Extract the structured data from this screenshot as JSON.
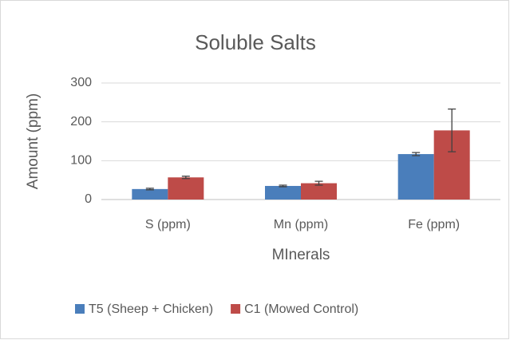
{
  "chart_data": {
    "type": "bar",
    "title": "Soluble Salts",
    "x_label": "MInerals",
    "y_label": "Amount (ppm)",
    "categories": [
      "S (ppm)",
      "Mn (ppm)",
      "Fe (ppm)"
    ],
    "series": [
      {
        "name": "T5 (Sheep + Chicken)",
        "color": "#4a7ebb",
        "values": [
          27,
          35,
          117
        ],
        "errors": [
          2,
          2,
          4
        ]
      },
      {
        "name": "C1 (Mowed Control)",
        "color": "#be4b48",
        "values": [
          57,
          42,
          178
        ],
        "errors": [
          3,
          5,
          55
        ]
      }
    ],
    "ylim": [
      0,
      300
    ],
    "yticks": [
      0,
      100,
      200,
      300
    ],
    "grid": true,
    "legend": "bottom"
  }
}
